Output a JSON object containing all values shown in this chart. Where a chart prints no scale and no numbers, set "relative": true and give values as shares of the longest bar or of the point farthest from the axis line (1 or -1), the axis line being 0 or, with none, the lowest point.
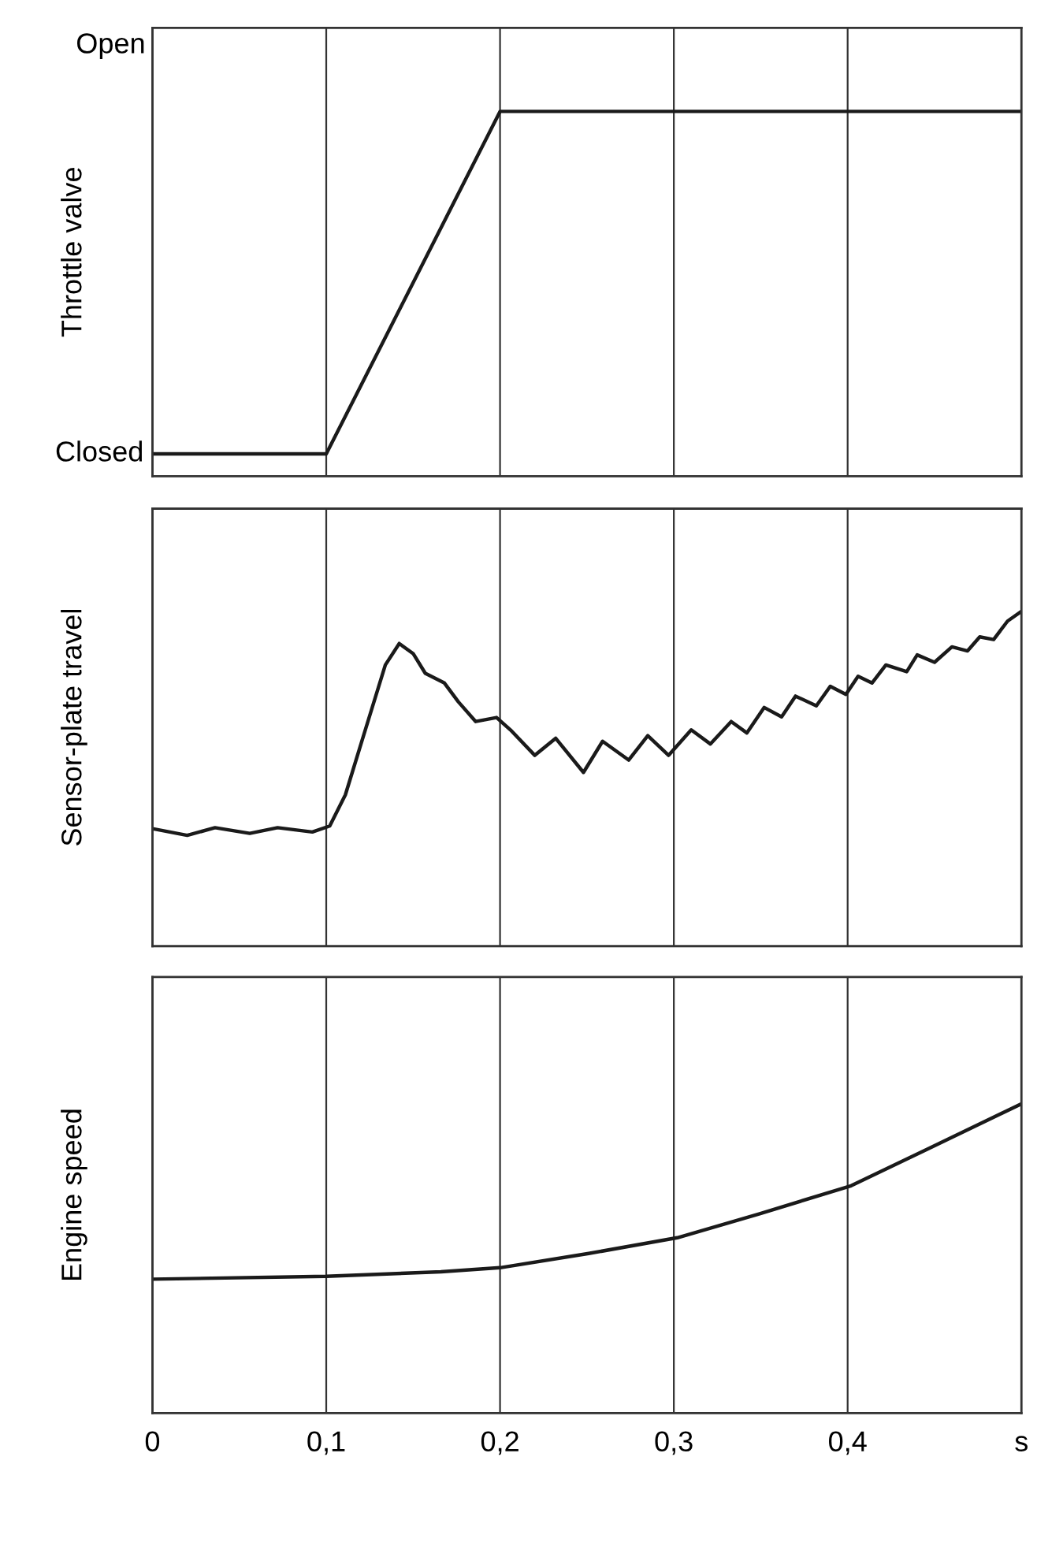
{
  "chart_data": [
    {
      "type": "line",
      "ylabel": "Throttle valve",
      "relative": true,
      "x": [
        0,
        0.1,
        0.2,
        0.5
      ],
      "values": [
        0.061,
        0.061,
        1,
        1
      ],
      "color": "#1a1a1a",
      "xlim": [
        0,
        0.5
      ],
      "annotations": [
        "Open",
        {
          "text": "Closed",
          "x": 0,
          "y": 0.061
        }
      ],
      "grid": "x",
      "tick_labels": false,
      "marker": "none",
      "line_style": "solid"
    },
    {
      "type": "line",
      "ylabel": "Sensor-plate travel",
      "relative": true,
      "x": [
        0,
        0.02,
        0.036,
        0.056,
        0.072,
        0.092,
        0.102,
        0.111,
        0.121,
        0.134,
        0.142,
        0.15,
        0.157,
        0.168,
        0.176,
        0.186,
        0.198,
        0.206,
        0.22,
        0.232,
        0.248,
        0.259,
        0.274,
        0.285,
        0.297,
        0.31,
        0.321,
        0.333,
        0.342,
        0.352,
        0.362,
        0.37,
        0.382,
        0.39,
        0.399,
        0.406,
        0.414,
        0.422,
        0.434,
        0.44,
        0.45,
        0.46,
        0.469,
        0.476,
        0.484,
        0.492,
        0.5
      ],
      "values": [
        0.351,
        0.331,
        0.354,
        0.337,
        0.354,
        0.341,
        0.359,
        0.452,
        0.621,
        0.84,
        0.904,
        0.874,
        0.815,
        0.786,
        0.73,
        0.671,
        0.683,
        0.646,
        0.57,
        0.621,
        0.519,
        0.612,
        0.556,
        0.629,
        0.57,
        0.646,
        0.604,
        0.671,
        0.637,
        0.713,
        0.685,
        0.747,
        0.718,
        0.776,
        0.752,
        0.806,
        0.786,
        0.84,
        0.82,
        0.87,
        0.848,
        0.894,
        0.882,
        0.924,
        0.916,
        0.971,
        1.0
      ],
      "color": "#1a1a1a",
      "xlim": [
        0,
        0.5
      ],
      "grid": "x",
      "tick_labels": false,
      "marker": "none",
      "line_style": "solid"
    },
    {
      "type": "line",
      "ylabel": "Engine speed",
      "relative": true,
      "x": [
        0,
        0.1,
        0.166,
        0.2,
        0.251,
        0.302,
        0.349,
        0.402,
        0.446,
        0.5
      ],
      "values": [
        0.433,
        0.442,
        0.457,
        0.47,
        0.516,
        0.567,
        0.644,
        0.735,
        0.854,
        1.0
      ],
      "color": "#1a1a1a",
      "xlim": [
        0,
        0.5
      ],
      "xticks": [
        0,
        {
          "value": 0.1,
          "label": "0,1"
        },
        {
          "value": 0.2,
          "label": "0,2"
        },
        {
          "value": 0.3,
          "label": "0,3"
        },
        {
          "value": 0.4,
          "label": "0,4"
        },
        {
          "value": 0.5,
          "label": "s"
        }
      ],
      "grid": "x",
      "tick_labels": "x",
      "marker": "none",
      "line_style": "solid"
    }
  ]
}
